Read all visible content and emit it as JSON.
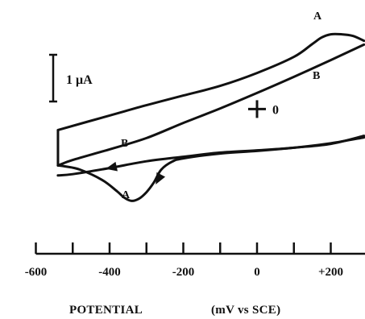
{
  "chart_data": {
    "type": "line",
    "xlabel": "POTENTIAL",
    "xunit": "(mV vs SCE)",
    "xlim": [
      -600,
      290
    ],
    "major_ticks": [
      -600,
      -400,
      -200,
      0,
      200
    ],
    "minor_ticks": [
      -500,
      -300,
      -100,
      100
    ],
    "tick_labels": [
      "-600",
      "-400",
      "-200",
      "0",
      "+200"
    ],
    "scale_bar_label": "1 μA",
    "zero_current_label": "0",
    "series": [
      {
        "name": "A",
        "label_forward": "A",
        "label_reverse": "A",
        "forward": {
          "x": [
            -540,
            -400,
            -300,
            -200,
            -100,
            0,
            100,
            150,
            175,
            200,
            230,
            260,
            290
          ],
          "y": [
            1.04,
            1.49,
            1.81,
            2.11,
            2.41,
            2.81,
            3.31,
            3.71,
            3.91,
            4.01,
            4.01,
            3.96,
            3.81
          ]
        },
        "reverse": {
          "x": [
            290,
            200,
            100,
            0,
            -100,
            -200,
            -230,
            -260,
            -280,
            -300,
            -320,
            -340,
            -360,
            -380,
            -420,
            -480,
            -520,
            -540
          ],
          "y": [
            0.86,
            0.61,
            0.49,
            0.39,
            0.31,
            0.16,
            0.06,
            -0.19,
            -0.59,
            -0.89,
            -1.09,
            -1.16,
            -1.06,
            -0.86,
            -0.51,
            -0.19,
            -0.09,
            -0.06
          ]
        }
      },
      {
        "name": "B",
        "label_forward": "B",
        "label_reverse": "B",
        "forward": {
          "x": [
            -540,
            -500,
            -400,
            -300,
            -200,
            -100,
            0,
            100,
            200,
            290
          ],
          "y": [
            -0.06,
            0.11,
            0.44,
            0.79,
            1.26,
            1.71,
            2.19,
            2.69,
            3.21,
            3.69
          ]
        },
        "reverse": {
          "x": [
            290,
            200,
            100,
            0,
            -100,
            -200,
            -300,
            -400,
            -500,
            -540
          ],
          "y": [
            0.81,
            0.63,
            0.49,
            0.41,
            0.34,
            0.21,
            0.07,
            -0.14,
            -0.33,
            -0.37
          ]
        }
      }
    ],
    "vertical_edge": {
      "x": -540,
      "y": [
        -0.06,
        1.04
      ]
    },
    "zero_marker": {
      "x": 0,
      "y": 1.69
    }
  }
}
